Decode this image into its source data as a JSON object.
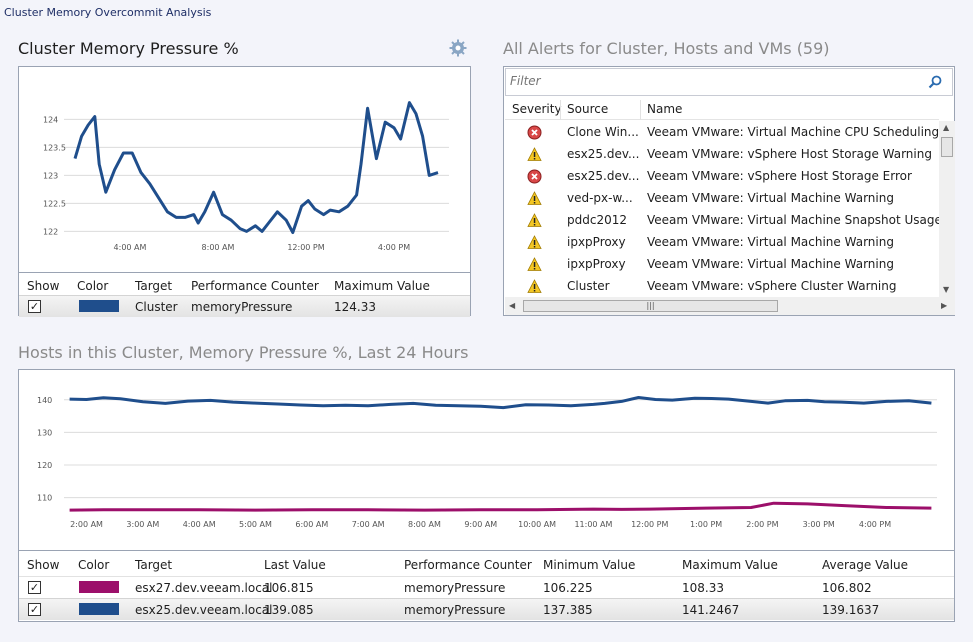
{
  "app": {
    "title": "Cluster Memory Overcommit Analysis"
  },
  "pressure_panel": {
    "title": "Cluster Memory Pressure %",
    "legend_headers": {
      "show": "Show",
      "color": "Color",
      "target": "Target",
      "counter": "Performance Counter",
      "max": "Maximum Value"
    },
    "legend_rows": [
      {
        "checked": "✓",
        "color": "#1f4e8c",
        "target": "Cluster",
        "counter": "memoryPressure",
        "max": "124.33"
      }
    ]
  },
  "alerts_panel": {
    "title": "All Alerts for Cluster, Hosts and VMs (59)",
    "filter_placeholder": "Filter",
    "headers": {
      "severity": "Severity",
      "source": "Source",
      "name": "Name"
    },
    "rows": [
      {
        "severity": "error",
        "source": "Clone Win...",
        "name": "Veeam VMware: Virtual Machine CPU Scheduling Analysis"
      },
      {
        "severity": "warning",
        "source": "esx25.dev....",
        "name": "Veeam VMware: vSphere Host Storage Warning"
      },
      {
        "severity": "error",
        "source": "esx25.dev....",
        "name": "Veeam VMware: vSphere Host Storage Error"
      },
      {
        "severity": "warning",
        "source": "ved-px-w...",
        "name": "Veeam VMware: Virtual Machine Warning"
      },
      {
        "severity": "warning",
        "source": "pddc2012",
        "name": "Veeam VMware: Virtual Machine Snapshot Usage Analysis"
      },
      {
        "severity": "warning",
        "source": "ipxpProxy",
        "name": "Veeam VMware: Virtual Machine Warning"
      },
      {
        "severity": "warning",
        "source": "ipxpProxy",
        "name": "Veeam VMware: Virtual Machine Warning"
      },
      {
        "severity": "warning",
        "source": "Cluster",
        "name": "Veeam VMware: vSphere Cluster Warning"
      }
    ]
  },
  "hosts_panel": {
    "title": "Hosts in this Cluster, Memory Pressure %, Last 24 Hours",
    "legend_headers": {
      "show": "Show",
      "color": "Color",
      "target": "Target",
      "last": "Last Value",
      "counter": "Performance Counter",
      "min": "Minimum Value",
      "max": "Maximum Value",
      "avg": "Average Value"
    },
    "legend_rows": [
      {
        "checked": "✓",
        "color": "#9c0f6a",
        "target": "esx27.dev.veeam.local",
        "last": "106.815",
        "counter": "memoryPressure",
        "min": "106.225",
        "max": "108.33",
        "avg": "106.802"
      },
      {
        "checked": "✓",
        "color": "#1f4e8c",
        "target": "esx25.dev.veeam.local",
        "last": "139.085",
        "counter": "memoryPressure",
        "min": "137.385",
        "max": "141.2467",
        "avg": "139.1637"
      }
    ]
  },
  "chart_data": [
    {
      "type": "line",
      "title": "Cluster Memory Pressure %",
      "x_ticks": [
        "4:00 AM",
        "8:00 AM",
        "12:00 PM",
        "4:00 PM"
      ],
      "x_tick_hours": [
        4,
        8,
        12,
        16
      ],
      "ylim": [
        121.9,
        124.4
      ],
      "y_ticks": [
        "122",
        "122.5",
        "123",
        "123.5",
        "124"
      ],
      "y_tick_values": [
        122,
        122.5,
        123,
        123.5,
        124
      ],
      "grid": true,
      "series": [
        {
          "name": "Cluster",
          "color": "#1f4e8c",
          "x_hours": [
            1.5,
            1.8,
            2.1,
            2.4,
            2.6,
            2.9,
            3.3,
            3.7,
            4.1,
            4.5,
            4.9,
            5.3,
            5.7,
            6.1,
            6.5,
            6.9,
            7.1,
            7.4,
            7.8,
            8.2,
            8.6,
            9.0,
            9.3,
            9.7,
            10.0,
            10.3,
            10.7,
            11.1,
            11.4,
            11.8,
            12.1,
            12.4,
            12.8,
            13.1,
            13.5,
            13.9,
            14.3,
            14.5,
            14.8,
            15.2,
            15.6,
            16.0,
            16.3,
            16.7,
            17.0,
            17.3,
            17.6,
            18.0
          ],
          "values": [
            123.3,
            123.7,
            123.9,
            124.05,
            123.2,
            122.7,
            123.1,
            123.4,
            123.4,
            123.05,
            122.85,
            122.6,
            122.35,
            122.25,
            122.25,
            122.3,
            122.15,
            122.35,
            122.7,
            122.3,
            122.2,
            122.05,
            122.0,
            122.1,
            122.0,
            122.15,
            122.35,
            122.2,
            121.98,
            122.45,
            122.55,
            122.4,
            122.3,
            122.38,
            122.35,
            122.45,
            122.65,
            123.2,
            124.2,
            123.3,
            123.95,
            123.85,
            123.65,
            124.3,
            124.1,
            123.7,
            123.0,
            123.05
          ]
        }
      ]
    },
    {
      "type": "line",
      "title": "Hosts in this Cluster, Memory Pressure %, Last 24 Hours",
      "x_ticks": [
        "2:00 AM",
        "3:00 AM",
        "4:00 AM",
        "5:00 AM",
        "6:00 AM",
        "7:00 AM",
        "8:00 AM",
        "9:00 AM",
        "10:00 AM",
        "11:00 AM",
        "12:00 PM",
        "1:00 PM",
        "2:00 PM",
        "3:00 PM",
        "4:00 PM"
      ],
      "x_tick_hours": [
        2,
        3,
        4,
        5,
        6,
        7,
        8,
        9,
        10,
        11,
        12,
        13,
        14,
        15,
        16
      ],
      "ylim": [
        105,
        143
      ],
      "y_ticks": [
        "110",
        "120",
        "130",
        "140"
      ],
      "y_tick_values": [
        110,
        120,
        130,
        140
      ],
      "grid": true,
      "series": [
        {
          "name": "esx25.dev.veeam.local",
          "color": "#1f4e8c",
          "x_hours": [
            1.7,
            2.0,
            2.3,
            2.6,
            3.0,
            3.4,
            3.8,
            4.2,
            4.6,
            5.0,
            5.4,
            5.8,
            6.2,
            6.6,
            7.0,
            7.4,
            7.8,
            8.2,
            8.6,
            9.0,
            9.4,
            9.8,
            10.2,
            10.6,
            11.0,
            11.2,
            11.5,
            11.8,
            12.1,
            12.4,
            12.8,
            13.1,
            13.4,
            13.8,
            14.1,
            14.4,
            14.8,
            15.1,
            15.4,
            15.8,
            16.2,
            16.6,
            17.0
          ],
          "values": [
            140.2,
            140.1,
            140.6,
            140.3,
            139.4,
            138.9,
            139.6,
            139.8,
            139.3,
            139.0,
            138.7,
            138.4,
            138.2,
            138.3,
            138.2,
            138.6,
            138.9,
            138.3,
            138.2,
            138.0,
            137.6,
            138.5,
            138.4,
            138.2,
            138.6,
            138.9,
            139.5,
            140.7,
            140.1,
            139.9,
            140.5,
            140.4,
            140.2,
            139.5,
            139.0,
            139.7,
            139.8,
            139.4,
            139.3,
            139.0,
            139.5,
            139.7,
            139.0
          ]
        },
        {
          "name": "esx27.dev.veeam.local",
          "color": "#9c0f6a",
          "x_hours": [
            1.7,
            2.3,
            3.0,
            4.0,
            5.0,
            6.0,
            7.0,
            8.0,
            9.0,
            10.0,
            11.0,
            11.5,
            12.0,
            13.0,
            13.8,
            14.2,
            14.8,
            15.5,
            16.2,
            17.0
          ],
          "values": [
            106.2,
            106.3,
            106.3,
            106.3,
            106.2,
            106.3,
            106.3,
            106.2,
            106.3,
            106.3,
            106.5,
            106.4,
            106.5,
            106.8,
            107.0,
            108.3,
            108.1,
            107.5,
            107.0,
            106.8
          ]
        }
      ]
    }
  ]
}
